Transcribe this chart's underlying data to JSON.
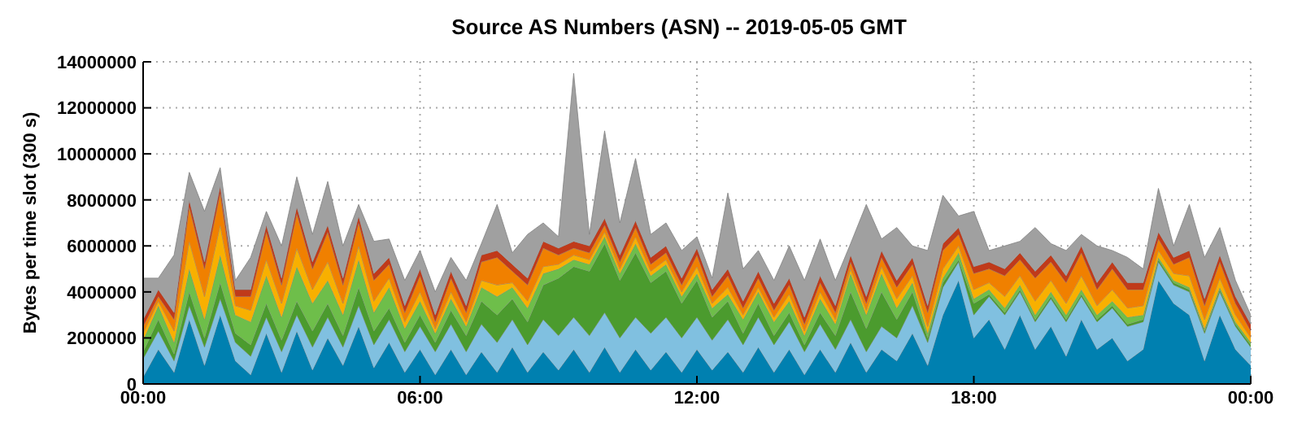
{
  "chart_data": {
    "type": "area",
    "stacked": true,
    "title": "Source AS Numbers (ASN) -- 2019-05-05 GMT",
    "ylabel": "Bytes per time slot (300 s)",
    "x": [
      0,
      0.33,
      0.67,
      1,
      1.33,
      1.67,
      2,
      2.33,
      2.67,
      3,
      3.33,
      3.67,
      4,
      4.33,
      4.67,
      5,
      5.33,
      5.67,
      6,
      6.33,
      6.67,
      7,
      7.33,
      7.67,
      8,
      8.33,
      8.67,
      9,
      9.33,
      9.67,
      10,
      10.33,
      10.67,
      11,
      11.33,
      11.67,
      12,
      12.33,
      12.67,
      13,
      13.33,
      13.67,
      14,
      14.33,
      14.67,
      15,
      15.33,
      15.67,
      16,
      16.33,
      16.67,
      17,
      17.33,
      17.67,
      18,
      18.33,
      18.67,
      19,
      19.33,
      19.67,
      20,
      20.33,
      20.67,
      21,
      21.33,
      21.67,
      22,
      22.33,
      22.67,
      23,
      23.33,
      23.67,
      24
    ],
    "xlim": [
      0,
      24
    ],
    "xticks": [
      {
        "value": 0,
        "label": "00:00"
      },
      {
        "value": 6,
        "label": "06:00"
      },
      {
        "value": 12,
        "label": "12:00"
      },
      {
        "value": 18,
        "label": "18:00"
      },
      {
        "value": 24,
        "label": "00:00"
      }
    ],
    "ylim": [
      0,
      14000000
    ],
    "yticks": [
      0,
      2000000,
      4000000,
      6000000,
      8000000,
      10000000,
      12000000,
      14000000
    ],
    "grid": true,
    "series": [
      {
        "color": "#0080b0",
        "values": [
          300000,
          1500000,
          500000,
          2800000,
          800000,
          3000000,
          1000000,
          400000,
          2200000,
          500000,
          2300000,
          600000,
          2000000,
          800000,
          2500000,
          700000,
          1800000,
          500000,
          1500000,
          400000,
          1500000,
          400000,
          1400000,
          500000,
          1600000,
          500000,
          1400000,
          600000,
          1500000,
          500000,
          1600000,
          500000,
          1500000,
          600000,
          1400000,
          500000,
          1500000,
          600000,
          1400000,
          500000,
          1600000,
          500000,
          1500000,
          400000,
          1500000,
          500000,
          1800000,
          500000,
          1500000,
          1000000,
          2200000,
          800000,
          3000000,
          4500000,
          2000000,
          2800000,
          1500000,
          3000000,
          1500000,
          2500000,
          1200000,
          2800000,
          1500000,
          2000000,
          1000000,
          1500000,
          4500000,
          3500000,
          3000000,
          1000000,
          3000000,
          1500000,
          800000
        ]
      },
      {
        "color": "#80c0e0",
        "values": [
          800000,
          800000,
          500000,
          600000,
          800000,
          700000,
          800000,
          800000,
          700000,
          900000,
          700000,
          1000000,
          900000,
          800000,
          900000,
          1000000,
          1000000,
          900000,
          1000000,
          1000000,
          1100000,
          1000000,
          1200000,
          1300000,
          1200000,
          1200000,
          1400000,
          1500000,
          1400000,
          1600000,
          1500000,
          1500000,
          1400000,
          1600000,
          1500000,
          1500000,
          1400000,
          1300000,
          1400000,
          1200000,
          1300000,
          1200000,
          1200000,
          1000000,
          1100000,
          1000000,
          1000000,
          900000,
          1000000,
          1000000,
          1200000,
          1000000,
          1200000,
          800000,
          1000000,
          1000000,
          1500000,
          1000000,
          1200000,
          1200000,
          1500000,
          1000000,
          1200000,
          1300000,
          1500000,
          1200000,
          800000,
          800000,
          1000000,
          1200000,
          1000000,
          1000000,
          800000
        ]
      },
      {
        "color": "#4b9b2e",
        "values": [
          300000,
          500000,
          300000,
          600000,
          400000,
          700000,
          400000,
          500000,
          600000,
          500000,
          600000,
          700000,
          600000,
          500000,
          800000,
          600000,
          500000,
          400000,
          500000,
          400000,
          600000,
          700000,
          1000000,
          1200000,
          900000,
          1000000,
          1500000,
          2500000,
          2200000,
          2800000,
          3000000,
          2500000,
          2800000,
          2200000,
          2000000,
          1500000,
          1600000,
          1000000,
          800000,
          500000,
          600000,
          400000,
          400000,
          300000,
          500000,
          600000,
          1200000,
          1000000,
          1500000,
          800000,
          600000,
          200000,
          200000,
          100000,
          500000,
          100000,
          100000,
          100000,
          100000,
          100000,
          100000,
          100000,
          100000,
          100000,
          100000,
          100000,
          100000,
          100000,
          100000,
          100000,
          100000,
          100000,
          100000
        ]
      },
      {
        "color": "#6ebe4a",
        "values": [
          500000,
          600000,
          500000,
          1000000,
          800000,
          1200000,
          800000,
          1000000,
          1200000,
          1000000,
          1500000,
          1200000,
          1000000,
          900000,
          1200000,
          800000,
          900000,
          600000,
          600000,
          400000,
          500000,
          400000,
          600000,
          800000,
          500000,
          600000,
          500000,
          400000,
          300000,
          300000,
          300000,
          300000,
          400000,
          300000,
          300000,
          300000,
          300000,
          400000,
          300000,
          600000,
          500000,
          600000,
          500000,
          400000,
          600000,
          500000,
          800000,
          600000,
          800000,
          500000,
          400000,
          200000,
          200000,
          300000,
          200000,
          200000,
          200000,
          200000,
          200000,
          200000,
          200000,
          200000,
          200000,
          200000,
          300000,
          200000,
          100000,
          100000,
          100000,
          100000,
          100000,
          100000,
          100000
        ]
      },
      {
        "color": "#f8b000",
        "values": [
          300000,
          200000,
          500000,
          1200000,
          1000000,
          1300000,
          400000,
          500000,
          700000,
          600000,
          800000,
          600000,
          800000,
          500000,
          600000,
          500000,
          400000,
          300000,
          400000,
          200000,
          300000,
          200000,
          300000,
          500000,
          200000,
          300000,
          300000,
          200000,
          200000,
          200000,
          200000,
          200000,
          300000,
          200000,
          200000,
          200000,
          300000,
          200000,
          300000,
          200000,
          200000,
          200000,
          300000,
          200000,
          300000,
          200000,
          200000,
          200000,
          300000,
          400000,
          300000,
          300000,
          400000,
          300000,
          400000,
          300000,
          500000,
          400000,
          600000,
          500000,
          500000,
          600000,
          400000,
          500000,
          400000,
          400000,
          300000,
          300000,
          500000,
          400000,
          400000,
          300000,
          200000
        ]
      },
      {
        "color": "#f08000",
        "values": [
          300000,
          200000,
          500000,
          1500000,
          1200000,
          1400000,
          400000,
          600000,
          1200000,
          800000,
          1500000,
          900000,
          1300000,
          800000,
          1000000,
          900000,
          600000,
          400000,
          700000,
          300000,
          600000,
          400000,
          800000,
          1200000,
          500000,
          700000,
          800000,
          400000,
          300000,
          300000,
          300000,
          300000,
          400000,
          300000,
          300000,
          300000,
          500000,
          300000,
          500000,
          300000,
          400000,
          300000,
          400000,
          300000,
          400000,
          300000,
          300000,
          300000,
          400000,
          500000,
          500000,
          600000,
          800000,
          500000,
          700000,
          600000,
          900000,
          700000,
          1000000,
          800000,
          900000,
          1000000,
          700000,
          900000,
          800000,
          700000,
          500000,
          400000,
          800000,
          600000,
          700000,
          500000,
          300000
        ]
      },
      {
        "color": "#c03a1a",
        "values": [
          300000,
          300000,
          300000,
          300000,
          300000,
          300000,
          300000,
          300000,
          300000,
          300000,
          300000,
          300000,
          300000,
          300000,
          300000,
          300000,
          300000,
          300000,
          300000,
          300000,
          300000,
          300000,
          300000,
          300000,
          300000,
          300000,
          300000,
          300000,
          300000,
          300000,
          300000,
          300000,
          300000,
          300000,
          300000,
          300000,
          300000,
          300000,
          300000,
          300000,
          300000,
          300000,
          300000,
          300000,
          300000,
          300000,
          300000,
          300000,
          300000,
          300000,
          300000,
          300000,
          300000,
          300000,
          300000,
          300000,
          300000,
          300000,
          300000,
          300000,
          300000,
          300000,
          300000,
          300000,
          300000,
          300000,
          300000,
          300000,
          300000,
          300000,
          300000,
          300000,
          300000
        ]
      },
      {
        "color": "#a0a0a0",
        "values": [
          1800000,
          500000,
          2500000,
          1200000,
          2200000,
          800000,
          400000,
          1400000,
          600000,
          1400000,
          1300000,
          1200000,
          1900000,
          1400000,
          500000,
          1400000,
          800000,
          1100000,
          800000,
          1000000,
          600000,
          1100000,
          500000,
          2000000,
          500000,
          1900000,
          800000,
          500000,
          7300000,
          500000,
          3800000,
          1400000,
          2700000,
          1000000,
          1000000,
          1200000,
          500000,
          500000,
          3300000,
          1400000,
          900000,
          1000000,
          1400000,
          1600000,
          1600000,
          1100000,
          500000,
          4000000,
          500000,
          2300000,
          500000,
          2400000,
          2100000,
          500000,
          2400000,
          500000,
          1000000,
          500000,
          1900000,
          500000,
          1100000,
          500000,
          1600000,
          500000,
          1100000,
          600000,
          1900000,
          500000,
          2000000,
          1800000,
          1200000,
          700000,
          400000
        ]
      }
    ]
  }
}
